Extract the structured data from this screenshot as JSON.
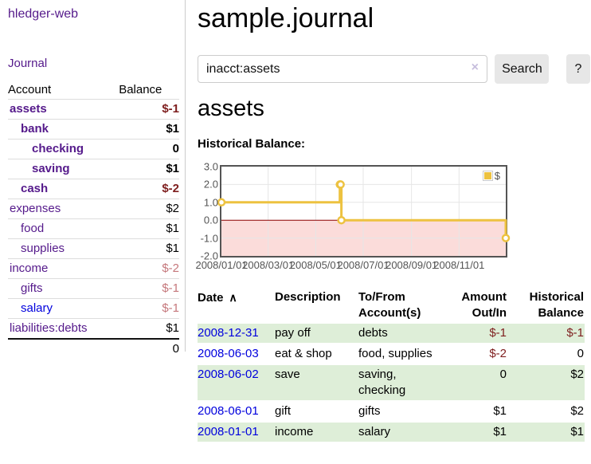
{
  "app": {
    "title": "hledger-web"
  },
  "nav": {
    "journal": "Journal"
  },
  "sidebar": {
    "columns": {
      "account": "Account",
      "balance": "Balance"
    },
    "accounts": [
      {
        "name": "assets",
        "indent": 0,
        "bold": true,
        "balance": "$-1",
        "negative": true,
        "unvisited": false
      },
      {
        "name": "bank",
        "indent": 1,
        "bold": true,
        "balance": "$1",
        "negative": false,
        "unvisited": false
      },
      {
        "name": "checking",
        "indent": 2,
        "bold": true,
        "balance": "0",
        "negative": false,
        "unvisited": false
      },
      {
        "name": "saving",
        "indent": 2,
        "bold": true,
        "balance": "$1",
        "negative": false,
        "unvisited": false
      },
      {
        "name": "cash",
        "indent": 1,
        "bold": true,
        "balance": "$-2",
        "negative": true,
        "unvisited": false
      },
      {
        "name": "expenses",
        "indent": 0,
        "bold": false,
        "balance": "$2",
        "negative": false,
        "unvisited": false
      },
      {
        "name": "food",
        "indent": 1,
        "bold": false,
        "balance": "$1",
        "negative": false,
        "unvisited": false
      },
      {
        "name": "supplies",
        "indent": 1,
        "bold": false,
        "balance": "$1",
        "negative": false,
        "unvisited": false
      },
      {
        "name": "income",
        "indent": 0,
        "bold": false,
        "balance": "$-2",
        "negative": true,
        "unvisited": false
      },
      {
        "name": "gifts",
        "indent": 1,
        "bold": false,
        "balance": "$-1",
        "negative": true,
        "unvisited": false
      },
      {
        "name": "salary",
        "indent": 1,
        "bold": false,
        "balance": "$-1",
        "negative": true,
        "unvisited": true
      },
      {
        "name": "liabilities:debts",
        "indent": 0,
        "bold": false,
        "balance": "$1",
        "negative": false,
        "unvisited": false
      }
    ],
    "total": "0"
  },
  "header": {
    "title": "sample.journal"
  },
  "search": {
    "value": "inacct:assets",
    "clear_icon": "×",
    "button": "Search",
    "help_button": "?"
  },
  "account_page": {
    "heading": "assets",
    "chart_label": "Historical Balance:"
  },
  "chart_data": {
    "type": "line",
    "style": "step",
    "title": "Historical Balance",
    "series": [
      {
        "name": "$",
        "color": "#EDC240",
        "points": [
          {
            "date": "2008/01/01",
            "day": 0,
            "value": 1.0
          },
          {
            "date": "2008/06/01",
            "day": 152,
            "value": 2.0
          },
          {
            "date": "2008/06/02",
            "day": 153,
            "value": 2.0
          },
          {
            "date": "2008/06/03",
            "day": 154,
            "value": 0.0
          },
          {
            "date": "2008/12/31",
            "day": 365,
            "value": -1.0
          }
        ]
      }
    ],
    "x_ticks": [
      {
        "label": "2008/01/01",
        "day": 0
      },
      {
        "label": "2008/03/01",
        "day": 60
      },
      {
        "label": "2008/05/01",
        "day": 121
      },
      {
        "label": "2008/07/01",
        "day": 182
      },
      {
        "label": "2008/09/01",
        "day": 244
      },
      {
        "label": "2008/11/01",
        "day": 305
      }
    ],
    "y_ticks": [
      "3.0",
      "2.0",
      "1.0",
      "0.0",
      "-1.0",
      "-2.0"
    ],
    "ylim": [
      -2,
      3
    ],
    "x_range_days": [
      0,
      365
    ],
    "grid": true,
    "legend_position": "top-right",
    "colors": {
      "negative_region": "#fbdcda",
      "zero_line": "#8b0000",
      "gridline": "#e6e6e6",
      "plot_border": "#545454",
      "marker_fill": "#ffffff"
    }
  },
  "register": {
    "sort_icon": "∧",
    "columns": [
      {
        "lines": [
          "Date"
        ],
        "align": "left",
        "sorted": true
      },
      {
        "lines": [
          "Description"
        ],
        "align": "left",
        "sorted": false
      },
      {
        "lines": [
          "To/From",
          "Account(s)"
        ],
        "align": "left",
        "sorted": false
      },
      {
        "lines": [
          "Amount",
          "Out/In"
        ],
        "align": "right",
        "sorted": false
      },
      {
        "lines": [
          "Historical",
          "Balance"
        ],
        "align": "right",
        "sorted": false
      }
    ],
    "rows": [
      {
        "date": "2008-12-31",
        "description": "pay off",
        "accounts": "debts",
        "amount": "$-1",
        "amount_negative": true,
        "balance": "$-1",
        "balance_negative": true
      },
      {
        "date": "2008-06-03",
        "description": "eat & shop",
        "accounts": "food, supplies",
        "amount": "$-2",
        "amount_negative": true,
        "balance": "0",
        "balance_negative": false
      },
      {
        "date": "2008-06-02",
        "description": "save",
        "accounts": "saving,\nchecking",
        "amount": "0",
        "amount_negative": false,
        "balance": "$2",
        "balance_negative": false
      },
      {
        "date": "2008-06-01",
        "description": "gift",
        "accounts": "gifts",
        "amount": "$1",
        "amount_negative": false,
        "balance": "$2",
        "balance_negative": false
      },
      {
        "date": "2008-01-01",
        "description": "income",
        "accounts": "salary",
        "amount": "$1",
        "amount_negative": false,
        "balance": "$1",
        "balance_negative": false
      }
    ]
  },
  "colors": {
    "visited_link": "#551a8b",
    "unvisited_link": "#0000dd",
    "negative_bold": "#7e1e1e",
    "negative_light": "#c5777b",
    "row_stripe_green": "#deeed8",
    "series_gold": "#EDC240"
  }
}
